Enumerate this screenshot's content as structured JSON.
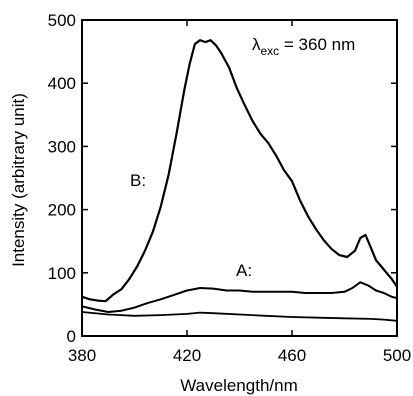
{
  "chart_data": {
    "type": "line",
    "title": "",
    "xlabel": "Wavelength/nm",
    "ylabel": "Intensity (arbitrary unit)",
    "xlim": [
      380,
      500
    ],
    "ylim": [
      0,
      500
    ],
    "xticks": [
      380,
      420,
      460,
      500
    ],
    "yticks": [
      0,
      100,
      200,
      300,
      400,
      500
    ],
    "grid": false,
    "annotation": {
      "symbol": "λ",
      "subscript": "exc",
      "text": " = 360 nm"
    },
    "series": [
      {
        "name": "B:",
        "x": [
          380,
          383,
          386,
          389,
          392,
          395,
          398,
          401,
          404,
          407,
          410,
          413,
          416,
          419,
          421,
          423,
          425,
          427,
          429,
          431,
          433,
          436,
          439,
          442,
          445,
          448,
          451,
          454,
          457,
          460,
          463,
          466,
          469,
          472,
          475,
          478,
          481,
          484,
          486,
          488,
          490,
          492,
          494,
          496,
          498,
          500
        ],
        "y": [
          62,
          58,
          56,
          55,
          66,
          74,
          90,
          110,
          135,
          165,
          205,
          255,
          320,
          390,
          430,
          462,
          468,
          465,
          468,
          460,
          448,
          425,
          392,
          365,
          340,
          320,
          305,
          285,
          262,
          245,
          215,
          190,
          170,
          152,
          138,
          128,
          125,
          135,
          155,
          160,
          140,
          120,
          110,
          100,
          90,
          78
        ]
      },
      {
        "name": "A:",
        "x": [
          380,
          385,
          390,
          395,
          400,
          405,
          410,
          415,
          420,
          425,
          430,
          435,
          440,
          445,
          450,
          455,
          460,
          465,
          470,
          475,
          480,
          483,
          486,
          489,
          492,
          495,
          498,
          500
        ],
        "y": [
          47,
          42,
          38,
          40,
          45,
          52,
          58,
          65,
          72,
          76,
          75,
          72,
          72,
          70,
          70,
          70,
          70,
          68,
          68,
          68,
          70,
          76,
          85,
          80,
          72,
          68,
          62,
          60
        ]
      },
      {
        "name": "",
        "x": [
          380,
          390,
          400,
          410,
          420,
          425,
          430,
          440,
          450,
          460,
          470,
          480,
          490,
          495,
          500
        ],
        "y": [
          38,
          34,
          32,
          33,
          35,
          37,
          36,
          34,
          32,
          30,
          29,
          28,
          27,
          26,
          24
        ]
      }
    ]
  }
}
